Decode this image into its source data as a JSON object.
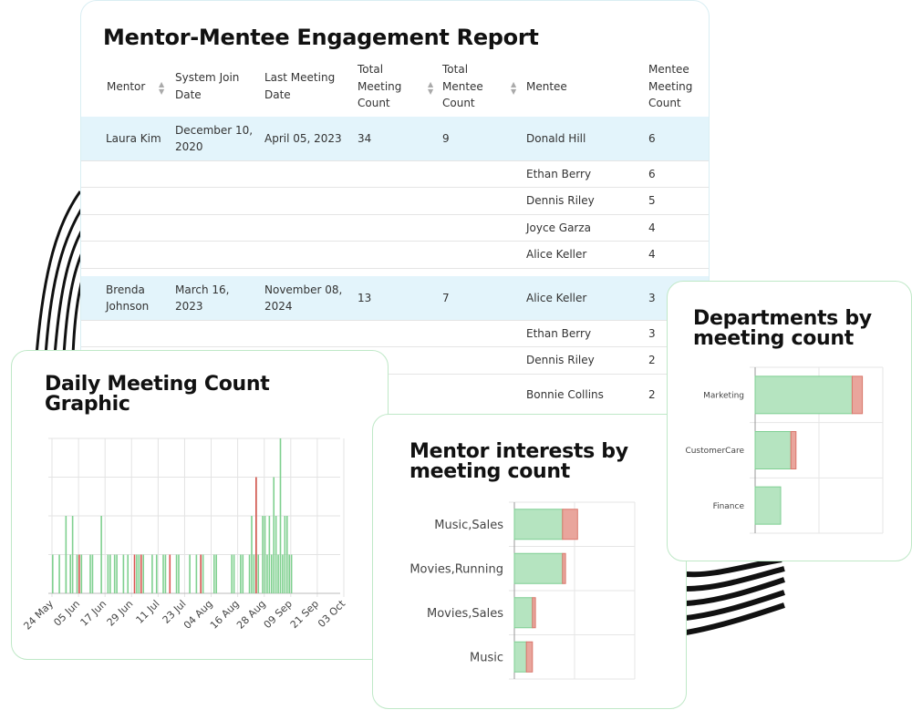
{
  "report": {
    "title": "Mentor-Mentee Engagement Report",
    "headers": {
      "mentor": "Mentor",
      "join_line1": "System Join",
      "join_line2": "Date",
      "last_line1": "Last Meeting",
      "last_line2": "Date",
      "tmc_line1": "Total",
      "tmc_line2": "Meeting",
      "tmc_line3": "Count",
      "tme_line1": "Total",
      "tme_line2": "Mentee",
      "tme_line3": "Count",
      "mentee": "Mentee",
      "mmc_line1": "Mentee",
      "mmc_line2": "Meeting",
      "mmc_line3": "Count"
    },
    "groups": [
      {
        "mentor_line1": "Laura Kim",
        "mentor_line2": "",
        "join_line1": "December 10,",
        "join_line2": "2020",
        "last_line1": "April 05, 2023",
        "last_line2": "",
        "total_meetings": "34",
        "total_mentees": "9",
        "mentees": [
          {
            "name": "Donald Hill",
            "count": "6"
          },
          {
            "name": "Ethan Berry",
            "count": "6"
          },
          {
            "name": "Dennis Riley",
            "count": "5"
          },
          {
            "name": "Joyce Garza",
            "count": "4"
          },
          {
            "name": "Alice Keller",
            "count": "4"
          }
        ]
      },
      {
        "mentor_line1": "Brenda",
        "mentor_line2": "Johnson",
        "join_line1": "March 16,",
        "join_line2": "2023",
        "last_line1": "November 08,",
        "last_line2": "2024",
        "total_meetings": "13",
        "total_mentees": "7",
        "mentees": [
          {
            "name": "Alice Keller",
            "count": "3"
          },
          {
            "name": "Ethan Berry",
            "count": "3"
          },
          {
            "name": "Dennis Riley",
            "count": "2"
          },
          {
            "name": "Bonnie Collins",
            "count": "2"
          }
        ]
      }
    ]
  },
  "daily": {
    "title_line1": "Daily Meeting Count",
    "title_line2": "Graphic",
    "chart_data": {
      "type": "bar",
      "title": "Daily Meeting Count Graphic",
      "x_tick_labels": [
        "24 May",
        "05 Jun",
        "17 Jun",
        "29 Jun",
        "11 Jul",
        "23 Jul",
        "04 Aug",
        "16 Aug",
        "28 Aug",
        "09 Sep",
        "21 Sep",
        "03 Oct"
      ],
      "ylim": [
        0,
        4
      ],
      "grid": true,
      "colors": {
        "green": "#7fd08f",
        "red": "#d9534f"
      },
      "series_green_day_offsets": [
        0,
        3,
        6,
        6,
        8,
        9,
        11,
        13,
        17,
        18,
        22,
        25,
        26,
        28,
        29,
        32,
        34,
        38,
        39,
        41,
        45,
        47,
        50,
        51,
        56,
        57,
        62,
        65,
        67,
        68,
        73,
        74,
        81,
        82,
        85,
        86,
        89,
        90,
        91,
        92,
        93,
        95,
        96,
        97,
        98,
        99,
        100,
        101,
        102,
        103,
        104,
        105,
        106,
        107,
        108
      ],
      "series_green_values": [
        1,
        1,
        1,
        2,
        1,
        2,
        1,
        1,
        1,
        1,
        2,
        1,
        1,
        1,
        1,
        1,
        1,
        1,
        1,
        1,
        1,
        1,
        1,
        1,
        1,
        1,
        1,
        1,
        1,
        1,
        1,
        1,
        1,
        1,
        1,
        1,
        1,
        2,
        1,
        3,
        1,
        2,
        2,
        1,
        2,
        1,
        3,
        2,
        1,
        4,
        1,
        2,
        2,
        1,
        1
      ],
      "series_red_day_offsets": [
        12,
        37,
        40,
        53,
        67,
        92
      ],
      "series_red_values": [
        1,
        1,
        1,
        1,
        1,
        3
      ]
    }
  },
  "interests": {
    "title_line1": "Mentor interests by",
    "title_line2": "meeting count",
    "chart_data": {
      "type": "bar",
      "orientation": "horizontal",
      "stacked": true,
      "title": "Mentor interests by meeting count",
      "categories": [
        "Music,Sales",
        "Movies,Running",
        "Movies,Sales",
        "Music"
      ],
      "series": [
        {
          "color": "#b5e4c0",
          "values": [
            16,
            16,
            6,
            4
          ]
        },
        {
          "color": "#e9a59c",
          "values": [
            5,
            1,
            1,
            2
          ]
        }
      ],
      "xlim": [
        0,
        40
      ],
      "grid": true
    }
  },
  "depts": {
    "title_line1": "Departments by",
    "title_line2": "meeting count",
    "chart_data": {
      "type": "bar",
      "orientation": "horizontal",
      "stacked": true,
      "title": "Departments by meeting count",
      "categories": [
        "Marketing",
        "CustomerCare",
        "Finance"
      ],
      "series": [
        {
          "color": "#b5e4c0",
          "values": [
            38,
            14,
            10
          ]
        },
        {
          "color": "#e9a59c",
          "values": [
            4,
            2,
            0
          ]
        }
      ],
      "xlim": [
        0,
        50
      ],
      "grid": true
    }
  }
}
